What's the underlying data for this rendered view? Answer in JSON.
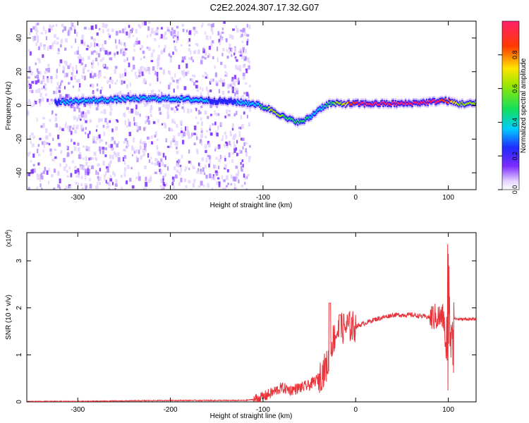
{
  "title": "C2E2.2024.307.17.32.G07",
  "colors": {
    "signal": "#e8333a",
    "trace_purple": "#6a1cff",
    "axis": "#000000"
  },
  "chart_data": [
    {
      "type": "heatmap",
      "title": "C2E2.2024.307.17.32.G07",
      "xlabel": "Height of straight line (km)",
      "ylabel": "Frequency (Hz)",
      "xlim": [
        -355,
        130
      ],
      "ylim": [
        -50,
        50
      ],
      "xticks": [
        -300,
        -200,
        -100,
        0,
        100
      ],
      "yticks": [
        -40,
        -20,
        0,
        20,
        40
      ],
      "colorbar": {
        "label": "Normalized spectral amplitude",
        "range": [
          0,
          1
        ],
        "ticks": [
          "0.0",
          "0.2",
          "0.4",
          "0.6",
          "0.8"
        ]
      },
      "ridge": {
        "description_points_height_km": [
          -320,
          -280,
          -240,
          -200,
          -160,
          -130,
          -110,
          -90,
          -75,
          -60,
          -50,
          -40,
          -30,
          0,
          50,
          80,
          95,
          110,
          130
        ],
        "frequency_hz": [
          2,
          3,
          4,
          4,
          3,
          2,
          1,
          -3,
          -8,
          -10,
          -7,
          -2,
          1,
          1,
          1,
          2,
          3,
          1,
          1
        ],
        "normalized_amplitude": [
          0.25,
          0.3,
          0.35,
          0.3,
          0.25,
          0.25,
          0.3,
          0.55,
          0.45,
          0.4,
          0.35,
          0.3,
          0.4,
          0.85,
          0.95,
          0.95,
          0.8,
          0.6,
          0.5
        ]
      }
    },
    {
      "type": "line",
      "xlabel": "Height of straight line (km)",
      "ylabel": "SNR (10 * v/v)",
      "y_multiplier": "(x10^4)",
      "xlim": [
        -355,
        130
      ],
      "ylim": [
        0,
        3.6
      ],
      "xticks": [
        -300,
        -200,
        -100,
        0,
        100
      ],
      "yticks": [
        0,
        1,
        2,
        3
      ],
      "series": [
        {
          "x": [
            -355,
            -300,
            -250,
            -200,
            -150,
            -120,
            -110,
            -100,
            -90,
            -80,
            -70,
            -60,
            -50,
            -40,
            -30,
            -25,
            -20,
            -10,
            0,
            20,
            40,
            60,
            80,
            90,
            95,
            100,
            102,
            105,
            110,
            120,
            130
          ],
          "y": [
            0.01,
            0.01,
            0.02,
            0.03,
            0.03,
            0.03,
            0.05,
            0.1,
            0.2,
            0.3,
            0.25,
            0.3,
            0.35,
            0.5,
            0.8,
            1.3,
            1.5,
            1.6,
            1.6,
            1.75,
            1.85,
            1.85,
            1.8,
            1.8,
            1.8,
            0.4,
            1.8,
            1.78,
            1.76,
            1.76,
            1.76
          ]
        }
      ]
    }
  ]
}
